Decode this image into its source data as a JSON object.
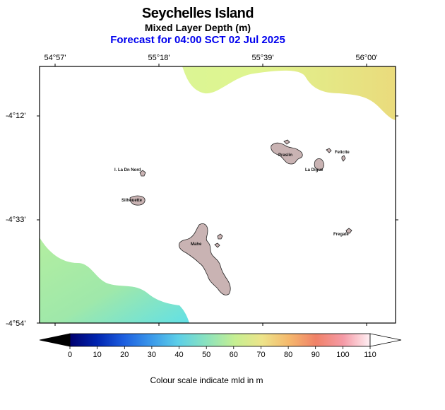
{
  "title": "Seychelles Island",
  "subtitle": "Mixed Layer Depth (m)",
  "forecast": "Forecast for  04:00 SCT 02 Jul 2025",
  "lon_labels": [
    "54°57'",
    "55°18'",
    "55°39'",
    "56°00'"
  ],
  "lat_labels": [
    "-4°12'",
    "-4°33'",
    "-4°54'"
  ],
  "islands": {
    "ile_denis": "I. La Dn Nord",
    "silhouette": "Silhouette",
    "mahe": "Mahe",
    "praslin": "Praslin",
    "la_digue": "La Digue",
    "felicite": "Felicite",
    "fregate": "Fregate"
  },
  "colorbar": {
    "ticks": [
      "0",
      "10",
      "20",
      "30",
      "40",
      "50",
      "60",
      "70",
      "80",
      "90",
      "100",
      "110"
    ],
    "caption": "Colour scale indicate mld in m",
    "colors": [
      "#000080",
      "#0033cc",
      "#2e6fe6",
      "#38a8ea",
      "#5fd5ea",
      "#8ee3b3",
      "#c8ef8e",
      "#eee38a",
      "#f5b56c",
      "#f07f6a",
      "#f5a0a8",
      "#ffe8ee"
    ]
  },
  "colors": {
    "land": "#c8b4b4",
    "sea": "#ffffff",
    "field_nw_top": "#d8f59a",
    "field_ne": "#ecdc7c",
    "field_sw": "#aeeca0",
    "field_sw_deep": "#6fe3e0",
    "forecast_text": "#0000ee"
  }
}
